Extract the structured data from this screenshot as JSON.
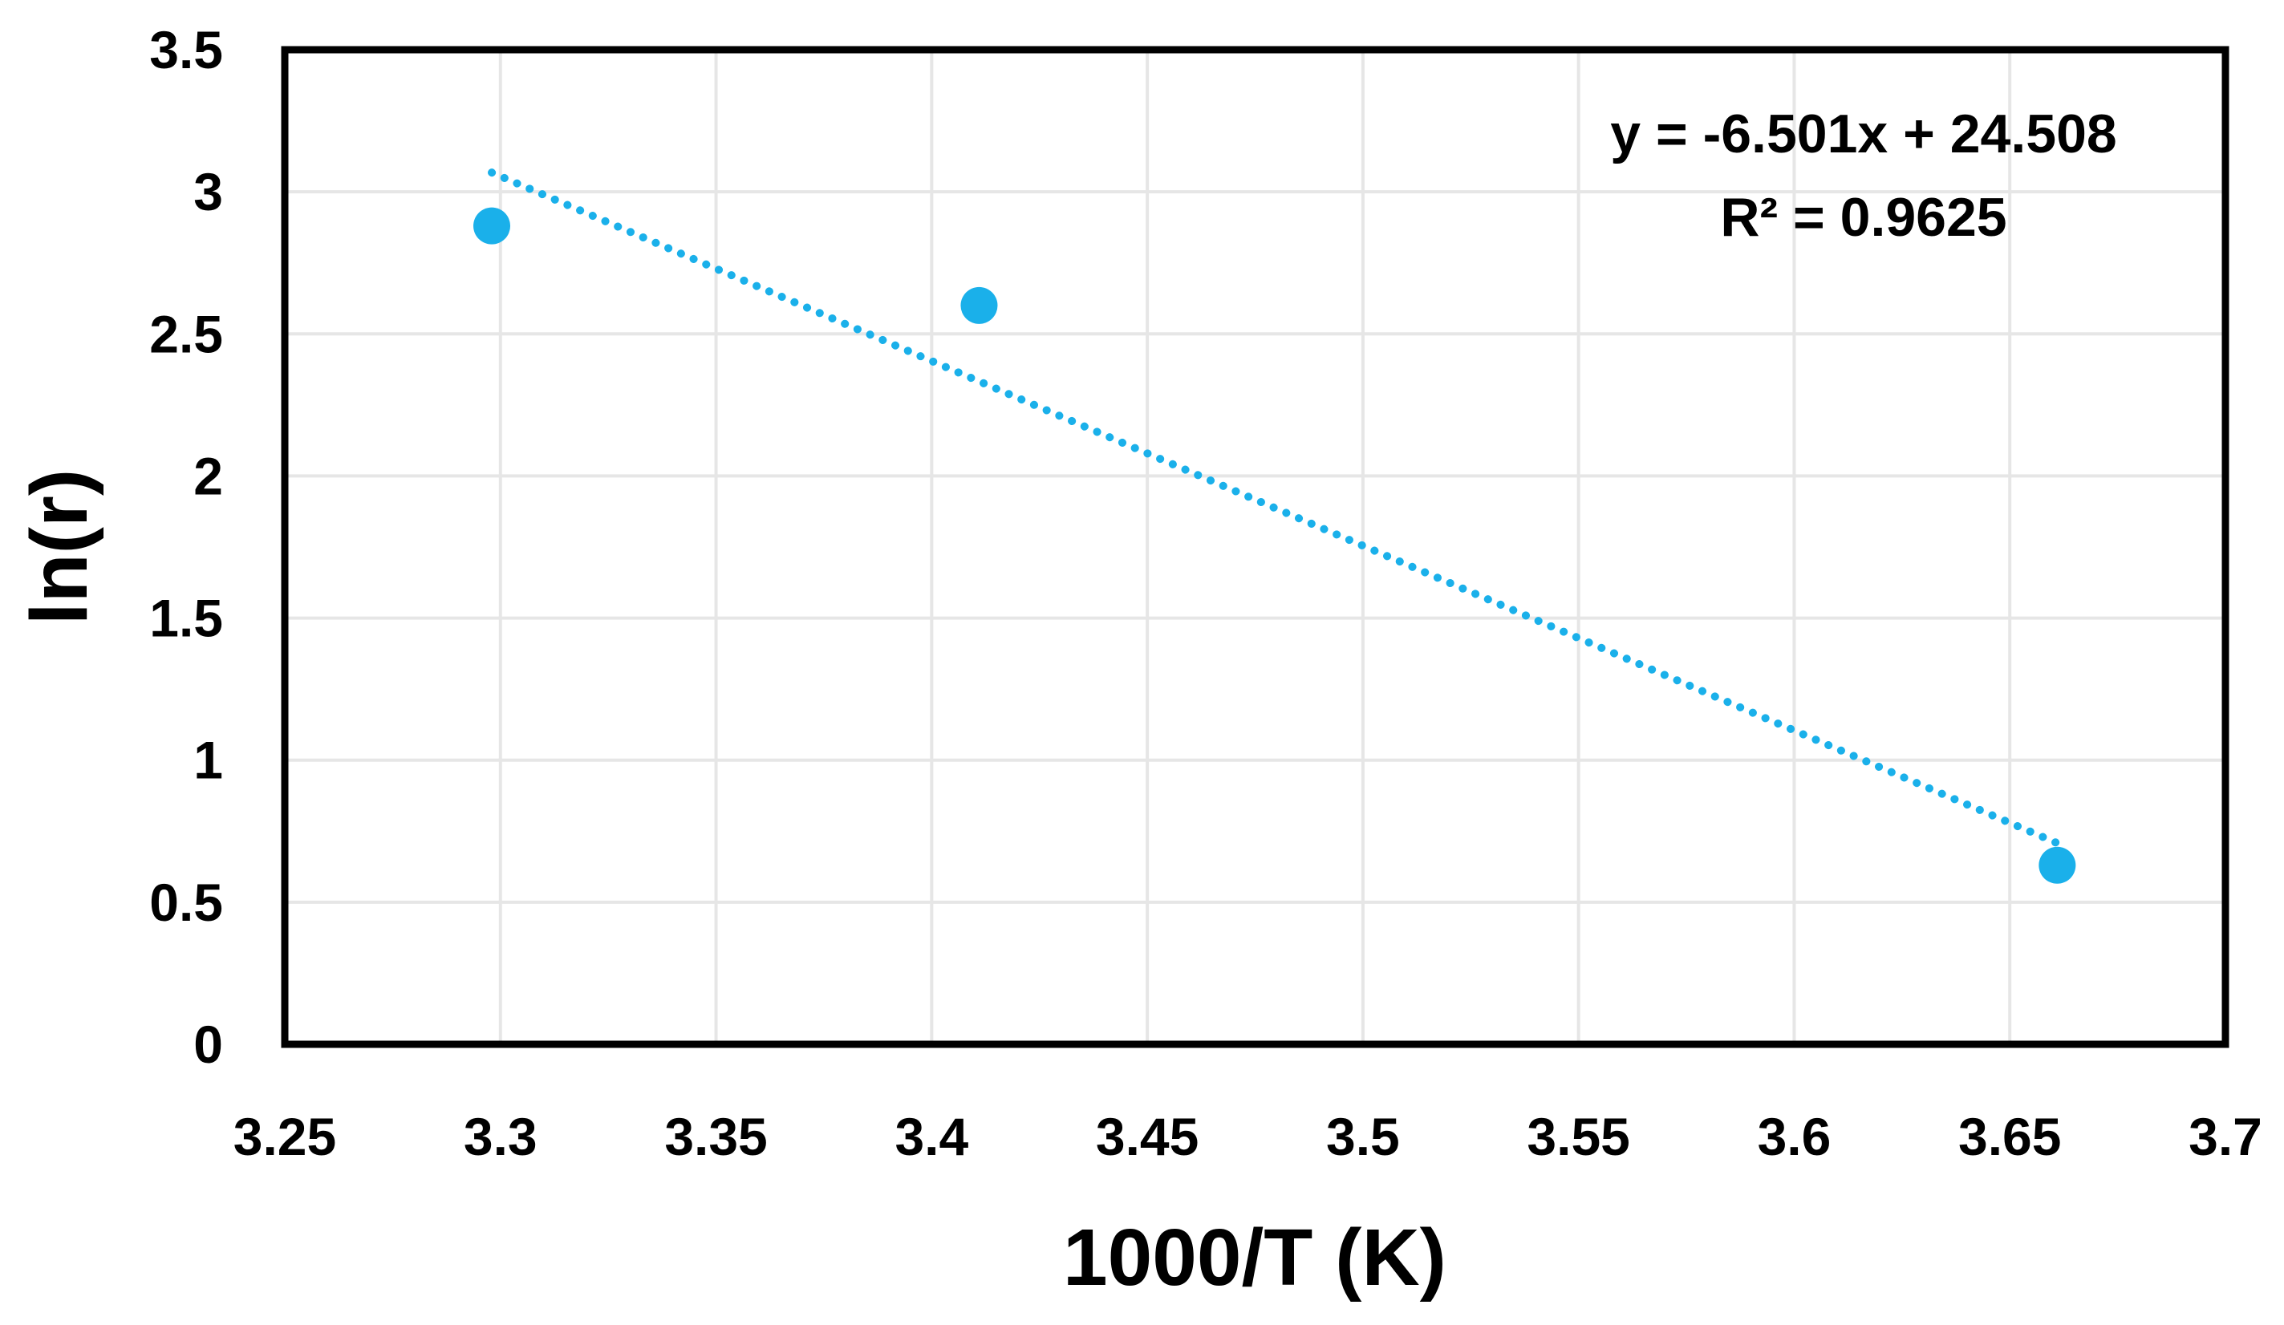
{
  "chart_data": {
    "type": "scatter",
    "title": "",
    "xlabel": "1000/T (K)",
    "ylabel": "ln(r)",
    "xlim": [
      3.25,
      3.7
    ],
    "ylim": [
      0,
      3.5
    ],
    "x_ticks": [
      3.25,
      3.3,
      3.35,
      3.4,
      3.45,
      3.5,
      3.55,
      3.6,
      3.65,
      3.7
    ],
    "y_ticks": [
      0,
      0.5,
      1,
      1.5,
      2,
      2.5,
      3,
      3.5
    ],
    "x_tick_labels": [
      "3.25",
      "3.3",
      "3.35",
      "3.4",
      "3.45",
      "3.5",
      "3.55",
      "3.6",
      "3.65",
      "3.7"
    ],
    "y_tick_labels": [
      "0",
      "0.5",
      "1",
      "1.5",
      "2",
      "2.5",
      "3",
      "3.5"
    ],
    "grid": true,
    "series": [
      {
        "name": "ln(r)",
        "x": [
          3.298,
          3.411,
          3.661
        ],
        "y": [
          2.88,
          2.6,
          0.63
        ],
        "color": "#1ab0ea"
      }
    ],
    "trendline": {
      "type": "linear",
      "slope": -6.501,
      "intercept": 24.508,
      "x_range": [
        3.298,
        3.661
      ],
      "color": "#1ab0ea",
      "style": "dotted",
      "equation": "y = -6.501x + 24.508",
      "r_squared": "R² = 0.9625"
    }
  }
}
